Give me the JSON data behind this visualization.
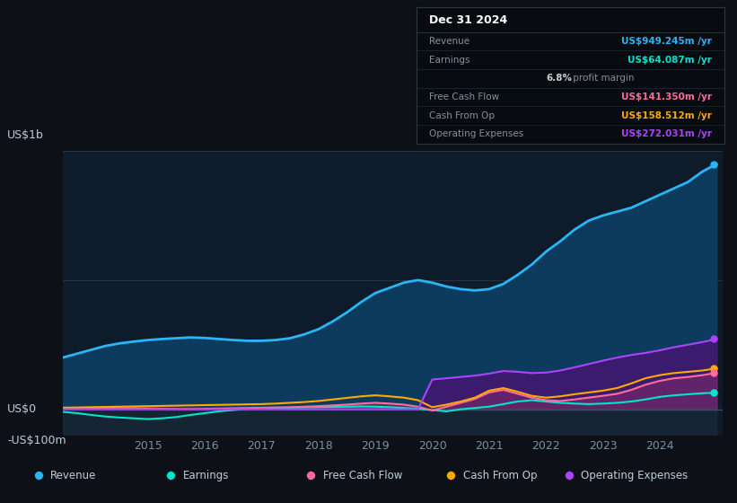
{
  "bg_color": "#0d1117",
  "plot_bg_color": "#0d1b2a",
  "grid_color": "#1e3050",
  "years": [
    2013.5,
    2013.75,
    2014.0,
    2014.25,
    2014.5,
    2014.75,
    2015.0,
    2015.25,
    2015.5,
    2015.75,
    2016.0,
    2016.25,
    2016.5,
    2016.75,
    2017.0,
    2017.25,
    2017.5,
    2017.75,
    2018.0,
    2018.25,
    2018.5,
    2018.75,
    2019.0,
    2019.25,
    2019.5,
    2019.75,
    2020.0,
    2020.25,
    2020.5,
    2020.75,
    2021.0,
    2021.25,
    2021.5,
    2021.75,
    2022.0,
    2022.25,
    2022.5,
    2022.75,
    2023.0,
    2023.25,
    2023.5,
    2023.75,
    2024.0,
    2024.25,
    2024.5,
    2024.75,
    2025.0
  ],
  "revenue": [
    200,
    215,
    230,
    245,
    255,
    262,
    268,
    272,
    275,
    278,
    276,
    272,
    268,
    265,
    265,
    268,
    275,
    290,
    310,
    340,
    375,
    415,
    450,
    470,
    490,
    500,
    490,
    475,
    465,
    460,
    465,
    485,
    520,
    560,
    610,
    650,
    695,
    730,
    750,
    765,
    780,
    805,
    830,
    855,
    880,
    920,
    949
  ],
  "earnings": [
    -10,
    -15,
    -22,
    -28,
    -32,
    -35,
    -38,
    -35,
    -30,
    -22,
    -15,
    -8,
    -3,
    2,
    4,
    5,
    6,
    7,
    8,
    9,
    10,
    11,
    10,
    8,
    5,
    2,
    -3,
    -8,
    0,
    5,
    10,
    20,
    30,
    35,
    30,
    25,
    22,
    20,
    22,
    25,
    30,
    38,
    48,
    54,
    58,
    62,
    64
  ],
  "free_cash_flow": [
    3,
    3,
    3,
    4,
    4,
    4,
    3,
    2,
    1,
    1,
    2,
    3,
    4,
    5,
    6,
    7,
    8,
    10,
    12,
    15,
    18,
    22,
    25,
    22,
    18,
    10,
    -5,
    10,
    25,
    40,
    65,
    75,
    60,
    45,
    35,
    32,
    38,
    45,
    52,
    60,
    75,
    95,
    110,
    120,
    125,
    132,
    141
  ],
  "cash_from_op": [
    6,
    7,
    8,
    9,
    10,
    11,
    12,
    13,
    14,
    15,
    16,
    17,
    18,
    19,
    20,
    22,
    25,
    28,
    32,
    38,
    44,
    50,
    54,
    50,
    45,
    35,
    8,
    18,
    30,
    45,
    72,
    82,
    68,
    52,
    45,
    50,
    58,
    65,
    72,
    82,
    100,
    120,
    132,
    140,
    145,
    150,
    158
  ],
  "op_expenses": [
    0,
    0,
    0,
    0,
    0,
    0,
    0,
    0,
    0,
    0,
    0,
    0,
    0,
    0,
    0,
    0,
    0,
    0,
    0,
    0,
    0,
    0,
    0,
    0,
    0,
    0,
    115,
    120,
    125,
    130,
    138,
    148,
    145,
    140,
    142,
    150,
    162,
    175,
    188,
    200,
    210,
    218,
    228,
    240,
    250,
    260,
    272
  ],
  "revenue_color": "#29b6f6",
  "revenue_fill": "#0d3b5e",
  "earnings_color": "#00e5cc",
  "free_cash_flow_color": "#ff6b9d",
  "cash_from_op_color": "#ffaa00",
  "op_expenses_color": "#aa44ff",
  "op_expenses_fill": "#3d1a6e",
  "ylim_min": -100,
  "ylim_max": 1000,
  "info_box": {
    "title": "Dec 31 2024",
    "rows": [
      {
        "label": "Revenue",
        "value": "US$949.245m /yr",
        "color": "#29b6f6"
      },
      {
        "label": "Earnings",
        "value": "US$64.087m /yr",
        "color": "#00e5cc"
      },
      {
        "label": "",
        "value": "6.8% profit margin",
        "color": "#cccccc"
      },
      {
        "label": "Free Cash Flow",
        "value": "US$141.350m /yr",
        "color": "#ff6b9d"
      },
      {
        "label": "Cash From Op",
        "value": "US$158.512m /yr",
        "color": "#ffaa00"
      },
      {
        "label": "Operating Expenses",
        "value": "US$272.031m /yr",
        "color": "#aa44ff"
      }
    ]
  },
  "legend_items": [
    {
      "label": "Revenue",
      "color": "#29b6f6"
    },
    {
      "label": "Earnings",
      "color": "#00e5cc"
    },
    {
      "label": "Free Cash Flow",
      "color": "#ff6b9d"
    },
    {
      "label": "Cash From Op",
      "color": "#ffaa00"
    },
    {
      "label": "Operating Expenses",
      "color": "#aa44ff"
    }
  ],
  "xmin": 2013.5,
  "xmax": 2025.1
}
